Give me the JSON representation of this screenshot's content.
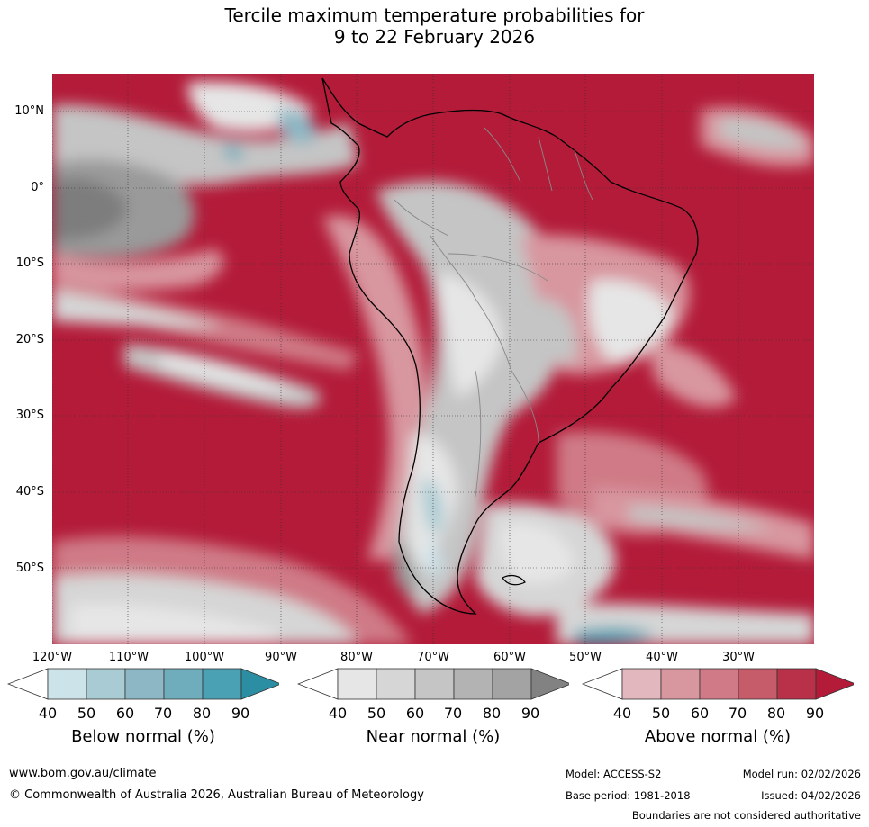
{
  "title": {
    "line1": "Tercile maximum temperature probabilities for",
    "line2": "9 to 22 February 2026"
  },
  "map": {
    "lat_labels": [
      "10°N",
      "0°",
      "10°S",
      "20°S",
      "30°S",
      "40°S",
      "50°S"
    ],
    "lon_labels": [
      "120°W",
      "110°W",
      "100°W",
      "90°W",
      "80°W",
      "70°W",
      "60°W",
      "50°W",
      "40°W",
      "30°W"
    ],
    "colors": {
      "above_dominant": "#b31b39",
      "land_boundary": "#000000",
      "country_border": "#888888"
    }
  },
  "legends": [
    {
      "title": "Below normal (%)",
      "ticks": [
        "40",
        "50",
        "60",
        "70",
        "80",
        "90"
      ],
      "colors": [
        "#ffffff",
        "#cce3ea",
        "#a9cbd3",
        "#8db7c4",
        "#6fadbc",
        "#4aa1b3",
        "#2b8ea3"
      ]
    },
    {
      "title": "Near normal (%)",
      "ticks": [
        "40",
        "50",
        "60",
        "70",
        "80",
        "90"
      ],
      "colors": [
        "#ffffff",
        "#e6e6e6",
        "#d6d6d6",
        "#c5c5c5",
        "#b3b3b3",
        "#a3a3a3",
        "#828282"
      ]
    },
    {
      "title": "Above normal (%)",
      "ticks": [
        "40",
        "50",
        "60",
        "70",
        "80",
        "90"
      ],
      "colors": [
        "#ffffff",
        "#e3b7be",
        "#d8969f",
        "#cf7a86",
        "#c65b6a",
        "#b93148",
        "#b31b39"
      ]
    }
  ],
  "footer": {
    "website": "www.bom.gov.au/climate",
    "copyright": "© Commonwealth of Australia 2026, Australian Bureau of Meteorology",
    "model": "Model: ACCESS-S2",
    "model_run": "Model run: 02/02/2026",
    "base_period": "Base period: 1981-2018",
    "issued": "Issued: 04/02/2026",
    "disclaimer": "Boundaries are not considered authoritative"
  }
}
